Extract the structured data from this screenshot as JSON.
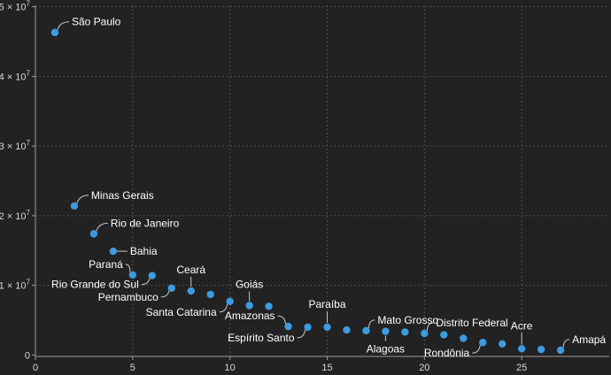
{
  "chart_data": {
    "type": "scatter",
    "title": "",
    "xlabel": "",
    "ylabel": "",
    "xlim": [
      0,
      29.5
    ],
    "ylim": [
      -200000,
      50200000
    ],
    "x_ticks": [
      0,
      5,
      10,
      15,
      20,
      25
    ],
    "y_ticks": [
      {
        "value": 0,
        "mantissa": "0",
        "exponent": ""
      },
      {
        "value": 10000000,
        "mantissa": "1 × 10",
        "exponent": "7"
      },
      {
        "value": 20000000,
        "mantissa": "2 × 10",
        "exponent": "7"
      },
      {
        "value": 30000000,
        "mantissa": "3 × 10",
        "exponent": "7"
      },
      {
        "value": 40000000,
        "mantissa": "4 × 10",
        "exponent": "7"
      },
      {
        "value": 50000000,
        "mantissa": "5 × 10",
        "exponent": "7"
      }
    ],
    "grid": true,
    "point_color": "#3d9be0",
    "points": [
      {
        "x": 1,
        "y": 46300000,
        "label": "São Paulo"
      },
      {
        "x": 2,
        "y": 21400000,
        "label": "Minas Gerais"
      },
      {
        "x": 3,
        "y": 17400000,
        "label": "Rio de Janeiro"
      },
      {
        "x": 4,
        "y": 14900000,
        "label": "Bahia"
      },
      {
        "x": 5,
        "y": 11500000,
        "label": "Paraná"
      },
      {
        "x": 6,
        "y": 11400000,
        "label": "Rio Grande do Sul"
      },
      {
        "x": 7,
        "y": 9600000,
        "label": "Pernambuco"
      },
      {
        "x": 8,
        "y": 9200000,
        "label": "Ceará"
      },
      {
        "x": 9,
        "y": 8700000,
        "label": ""
      },
      {
        "x": 10,
        "y": 7700000,
        "label": "Santa Catarina"
      },
      {
        "x": 11,
        "y": 7100000,
        "label": "Goiás"
      },
      {
        "x": 12,
        "y": 7000000,
        "label": ""
      },
      {
        "x": 13,
        "y": 4100000,
        "label": "Amazonas"
      },
      {
        "x": 14,
        "y": 4000000,
        "label": "Espírito Santo"
      },
      {
        "x": 15,
        "y": 4000000,
        "label": "Paraíba"
      },
      {
        "x": 16,
        "y": 3600000,
        "label": ""
      },
      {
        "x": 17,
        "y": 3500000,
        "label": "Mato Grosso"
      },
      {
        "x": 18,
        "y": 3400000,
        "label": "Alagoas"
      },
      {
        "x": 19,
        "y": 3300000,
        "label": ""
      },
      {
        "x": 20,
        "y": 3100000,
        "label": "Distrito Federal"
      },
      {
        "x": 21,
        "y": 2900000,
        "label": ""
      },
      {
        "x": 22,
        "y": 2400000,
        "label": ""
      },
      {
        "x": 23,
        "y": 1800000,
        "label": "Rondônia"
      },
      {
        "x": 24,
        "y": 1600000,
        "label": ""
      },
      {
        "x": 25,
        "y": 900000,
        "label": "Acre"
      },
      {
        "x": 26,
        "y": 800000,
        "label": ""
      },
      {
        "x": 27,
        "y": 700000,
        "label": "Amapá"
      }
    ]
  }
}
